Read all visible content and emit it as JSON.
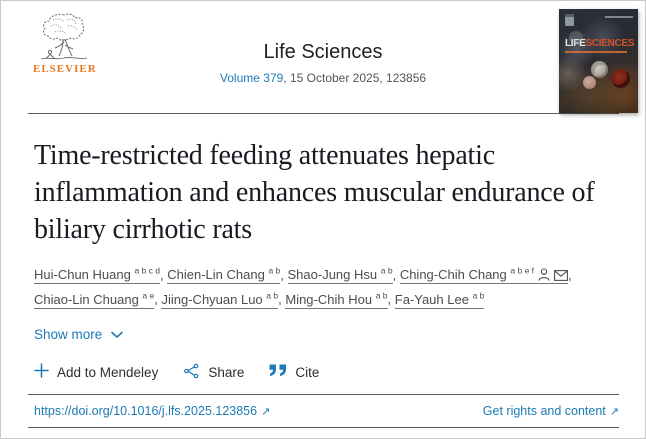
{
  "header": {
    "publisher_name": "ELSEVIER",
    "journal_title": "Life Sciences",
    "volume_link": "Volume 379",
    "issue_info": ", 15 October 2025, 123856",
    "cover": {
      "title_part1": "LIFE",
      "title_part2": "SCIENCES"
    }
  },
  "article": {
    "title": "Time-restricted feeding attenuates hepatic inflammation and enhances muscular endurance of biliary cirrhotic rats",
    "authors": [
      {
        "name": "Hui-Chun Huang",
        "sup": "a b c d"
      },
      {
        "name": "Chien-Lin Chang",
        "sup": "a b"
      },
      {
        "name": "Shao-Jung Hsu",
        "sup": "a b"
      },
      {
        "name": "Ching-Chih Chang",
        "sup": "a b e f",
        "corresponding": true
      },
      {
        "name": "Chiao-Lin Chuang",
        "sup": "a e"
      },
      {
        "name": "Jiing-Chyuan Luo",
        "sup": "a b"
      },
      {
        "name": "Ming-Chih Hou",
        "sup": "a b"
      },
      {
        "name": "Fa-Yauh Lee",
        "sup": "a b"
      }
    ],
    "show_more_label": "Show more"
  },
  "actions": {
    "mendeley_label": "Add to Mendeley",
    "share_label": "Share",
    "cite_label": "Cite"
  },
  "footer": {
    "doi": "https://doi.org/10.1016/j.lfs.2025.123856",
    "rights_label": "Get rights and content"
  },
  "icons": {
    "external_arrow": "↗",
    "cite_glyph": "”"
  },
  "colors": {
    "accent_blue": "#1d7ab5",
    "elsevier_orange": "#e87a22",
    "cover_red": "#d4502c",
    "rule_gray": "#5c5c5c",
    "text_dark": "#1a1a22",
    "text_gray": "#4c4c4c"
  }
}
